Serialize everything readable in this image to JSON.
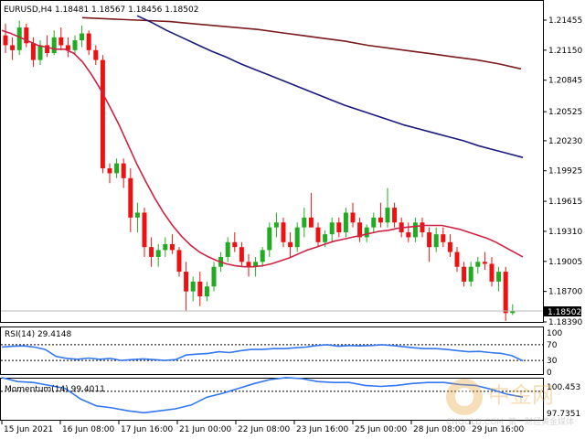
{
  "main_pane": {
    "symbol_header": "EURUSD,H4  1.18481 1.18567 1.18456 1.18502",
    "current_price_label": "1.18502",
    "price_axis": [
      "1.21455",
      "1.21150",
      "1.20845",
      "1.20525",
      "1.20230",
      "1.19925",
      "1.19615",
      "1.19310",
      "1.19005",
      "1.18700",
      "1.18390"
    ]
  },
  "rsi_pane": {
    "header": "RSI(14) 29.4148",
    "axis": [
      "100",
      "70",
      "30",
      "0"
    ]
  },
  "momentum_pane": {
    "header": "Momentum(14) 99.4011",
    "axis": [
      "100.453",
      "97.7351"
    ]
  },
  "time_axis": [
    "15 Jun 2021",
    "16 Jun 08:00",
    "17 Jun 16:00",
    "21 Jun 00:00",
    "22 Jun 08:00",
    "23 Jun 16:00",
    "25 Jun 00:00",
    "28 Jun 08:00",
    "29 Jun 16:00"
  ],
  "watermark": {
    "brand": "中金网",
    "domain": "CNGOLD.COM",
    "slogan": "第一财经黄金媒体"
  },
  "colors": {
    "bull": "#22aa22",
    "bear": "#ee1111",
    "ma_short": "#cc2244",
    "ma_mid": "#1a1a7a",
    "ma_long": "#7a1a1a",
    "osc": "#3377ee"
  },
  "chart_data": {
    "type": "candlestick",
    "candles": [
      [
        1.213,
        1.2142,
        1.2112,
        1.212
      ],
      [
        1.212,
        1.2128,
        1.2105,
        1.2115
      ],
      [
        1.2115,
        1.2145,
        1.211,
        1.2138
      ],
      [
        1.2138,
        1.2142,
        1.2118,
        1.2122
      ],
      [
        1.2122,
        1.2128,
        1.2098,
        1.2105
      ],
      [
        1.2105,
        1.2125,
        1.21,
        1.212
      ],
      [
        1.212,
        1.213,
        1.2108,
        1.2112
      ],
      [
        1.2112,
        1.2135,
        1.211,
        1.2128
      ],
      [
        1.2128,
        1.2138,
        1.2115,
        1.212
      ],
      [
        1.212,
        1.2128,
        1.2108,
        1.2115
      ],
      [
        1.2115,
        1.213,
        1.211,
        1.2125
      ],
      [
        1.2125,
        1.214,
        1.2118,
        1.2132
      ],
      [
        1.2132,
        1.2135,
        1.211,
        1.2115
      ],
      [
        1.2115,
        1.212,
        1.21,
        1.2105
      ],
      [
        1.2105,
        1.211,
        1.199,
        1.1995
      ],
      [
        1.1995,
        1.2,
        1.198,
        1.199
      ],
      [
        1.199,
        1.2005,
        1.1985,
        1.2
      ],
      [
        1.2,
        1.2005,
        1.1975,
        1.1985
      ],
      [
        1.1985,
        1.1995,
        1.193,
        1.1945
      ],
      [
        1.1945,
        1.196,
        1.193,
        1.195
      ],
      [
        1.195,
        1.1955,
        1.1905,
        1.1915
      ],
      [
        1.1915,
        1.1925,
        1.1895,
        1.1905
      ],
      [
        1.1905,
        1.1918,
        1.1895,
        1.1912
      ],
      [
        1.1912,
        1.1925,
        1.1905,
        1.1918
      ],
      [
        1.1918,
        1.1928,
        1.1908,
        1.1912
      ],
      [
        1.1912,
        1.1915,
        1.1885,
        1.189
      ],
      [
        1.189,
        1.19,
        1.185,
        1.187
      ],
      [
        1.187,
        1.1885,
        1.186,
        1.188
      ],
      [
        1.188,
        1.189,
        1.1855,
        1.1865
      ],
      [
        1.1865,
        1.188,
        1.186,
        1.1875
      ],
      [
        1.1875,
        1.19,
        1.187,
        1.1895
      ],
      [
        1.1895,
        1.191,
        1.189,
        1.1905
      ],
      [
        1.1905,
        1.1925,
        1.19,
        1.192
      ],
      [
        1.192,
        1.193,
        1.191,
        1.1915
      ],
      [
        1.1915,
        1.192,
        1.1895,
        1.19
      ],
      [
        1.19,
        1.1908,
        1.1885,
        1.1895
      ],
      [
        1.1895,
        1.1905,
        1.1885,
        1.19
      ],
      [
        1.19,
        1.1915,
        1.1895,
        1.1912
      ],
      [
        1.1912,
        1.194,
        1.1905,
        1.1935
      ],
      [
        1.1935,
        1.195,
        1.1925,
        1.194
      ],
      [
        1.194,
        1.1945,
        1.1915,
        1.192
      ],
      [
        1.192,
        1.193,
        1.1905,
        1.1915
      ],
      [
        1.1915,
        1.194,
        1.191,
        1.1935
      ],
      [
        1.1935,
        1.1955,
        1.1925,
        1.1945
      ],
      [
        1.1945,
        1.197,
        1.1935,
        1.1935
      ],
      [
        1.1935,
        1.194,
        1.1915,
        1.192
      ],
      [
        1.192,
        1.1932,
        1.1915,
        1.1928
      ],
      [
        1.1928,
        1.1945,
        1.192,
        1.194
      ],
      [
        1.194,
        1.1945,
        1.1925,
        1.193
      ],
      [
        1.193,
        1.1955,
        1.1925,
        1.195
      ],
      [
        1.195,
        1.196,
        1.1935,
        1.194
      ],
      [
        1.194,
        1.1945,
        1.192,
        1.1925
      ],
      [
        1.1925,
        1.1938,
        1.192,
        1.1935
      ],
      [
        1.1935,
        1.195,
        1.193,
        1.1945
      ],
      [
        1.1945,
        1.196,
        1.1935,
        1.194
      ],
      [
        1.194,
        1.1975,
        1.1935,
        1.1955
      ],
      [
        1.1955,
        1.196,
        1.1935,
        1.194
      ],
      [
        1.194,
        1.1945,
        1.1925,
        1.193
      ],
      [
        1.193,
        1.194,
        1.192,
        1.1925
      ],
      [
        1.1925,
        1.1945,
        1.192,
        1.194
      ],
      [
        1.194,
        1.1945,
        1.1925,
        1.193
      ],
      [
        1.193,
        1.1935,
        1.19,
        1.1915
      ],
      [
        1.1915,
        1.1935,
        1.191,
        1.1928
      ],
      [
        1.1928,
        1.1935,
        1.1915,
        1.192
      ],
      [
        1.192,
        1.1928,
        1.1905,
        1.191
      ],
      [
        1.191,
        1.1915,
        1.189,
        1.1895
      ],
      [
        1.1895,
        1.19,
        1.1875,
        1.188
      ],
      [
        1.188,
        1.19,
        1.1875,
        1.1895
      ],
      [
        1.1895,
        1.1905,
        1.1888,
        1.19
      ],
      [
        1.19,
        1.191,
        1.1892,
        1.1898
      ],
      [
        1.1898,
        1.1905,
        1.1875,
        1.188
      ],
      [
        1.188,
        1.1895,
        1.187,
        1.189
      ],
      [
        1.189,
        1.1895,
        1.184,
        1.1848
      ],
      [
        1.1848,
        1.1857,
        1.1846,
        1.185
      ]
    ],
    "ma_short": [
      1.2135,
      1.2132,
      1.2128,
      1.2124,
      1.212,
      1.2118,
      1.2116,
      1.2116,
      1.2112,
      1.2103,
      1.209,
      1.2075,
      1.2058,
      1.204,
      1.202,
      1.2,
      1.1982,
      1.1965,
      1.195,
      1.1937,
      1.1926,
      1.1917,
      1.191,
      1.1905,
      1.1901,
      1.1898,
      1.1896,
      1.1895,
      1.1895,
      1.1896,
      1.1898,
      1.1901,
      1.1904,
      1.1908,
      1.1912,
      1.1915,
      1.1918,
      1.1921,
      1.1923,
      1.1925,
      1.1927,
      1.1929,
      1.1931,
      1.1932,
      1.1934,
      1.1935,
      1.1936,
      1.1937,
      1.1937,
      1.1937,
      1.1935,
      1.1933,
      1.193,
      1.1927,
      1.1924,
      1.192,
      1.1915,
      1.191,
      1.1905
    ],
    "ma_mid": [
      1.215,
      1.2143,
      1.2135,
      1.2128,
      1.2121,
      1.2114,
      1.2108,
      1.2101,
      1.2095,
      1.2089,
      1.2083,
      1.2077,
      1.2071,
      1.2065,
      1.2059,
      1.2054,
      1.2049,
      1.2044,
      1.2039,
      1.2035,
      1.2031,
      1.2027,
      1.2023,
      1.2018,
      1.2014,
      1.201,
      1.2006
    ],
    "ma_long": [
      1.2148,
      1.2147,
      1.2146,
      1.2145,
      1.2144,
      1.2142,
      1.214,
      1.2138,
      1.2136,
      1.2133,
      1.213,
      1.2127,
      1.2124,
      1.212,
      1.2117,
      1.2114,
      1.2111,
      1.2108,
      1.2105,
      1.2101,
      1.2096
    ],
    "rsi": [
      64,
      66,
      67,
      64,
      58,
      40,
      35,
      33,
      36,
      33,
      35,
      30,
      32,
      34,
      32,
      30,
      32,
      44,
      46,
      48,
      52,
      50,
      55,
      58,
      58,
      60,
      60,
      62,
      64,
      68,
      70,
      66,
      68,
      67,
      68,
      70,
      68,
      65,
      62,
      60,
      60,
      58,
      55,
      52,
      53,
      50,
      48,
      42,
      29
    ],
    "momentum": [
      101.4,
      101.0,
      100.9,
      100.6,
      100.3,
      99.2,
      98.5,
      98.3,
      98.0,
      97.8,
      98.0,
      98.2,
      98.6,
      99.4,
      99.8,
      100.3,
      100.8,
      101.2,
      101.4,
      101.3,
      101.0,
      100.9,
      100.9,
      100.6,
      100.5,
      100.6,
      100.8,
      100.9,
      100.9,
      100.7,
      100.6,
      100.2,
      99.7,
      99.4
    ]
  }
}
